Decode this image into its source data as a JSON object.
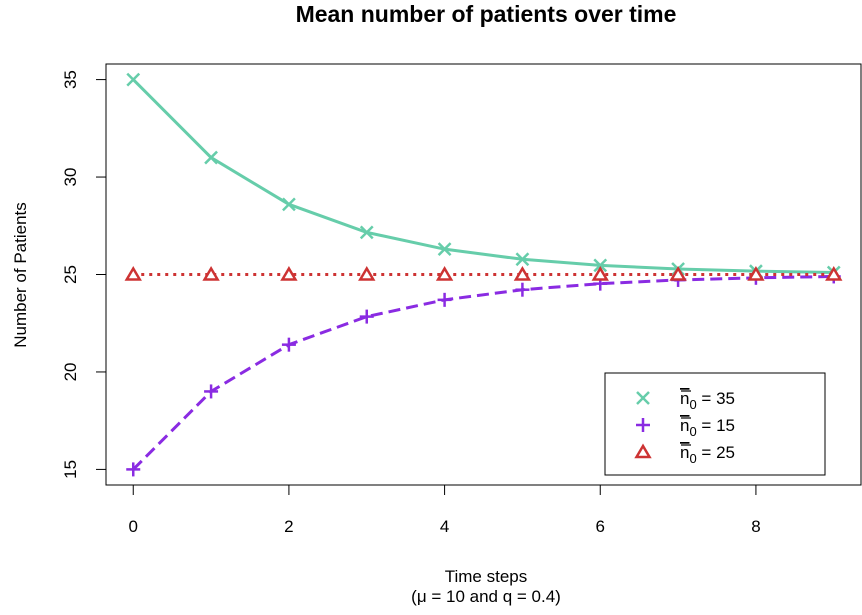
{
  "chart_data": {
    "type": "line",
    "title": "Mean number of patients over time",
    "xlabel": "Time steps",
    "xlabel_sub": "(μ = 10 and q = 0.4)",
    "ylabel": "Number of Patients",
    "xlim": [
      -0.35,
      9.35
    ],
    "ylim": [
      14.2,
      35.8
    ],
    "x_ticks": [
      0,
      2,
      4,
      6,
      8
    ],
    "y_ticks": [
      15,
      20,
      25,
      30,
      35
    ],
    "grid": false,
    "legend_position": "bottom-right",
    "x": [
      0,
      1,
      2,
      3,
      4,
      5,
      6,
      7,
      8,
      9
    ],
    "series": [
      {
        "name": "n̄₀ = 35",
        "legend_main": "n",
        "legend_sub": "0",
        "legend_rest": " = 35",
        "values": [
          35,
          31,
          28.6,
          27.16,
          26.3,
          25.78,
          25.47,
          25.28,
          25.17,
          25.1
        ],
        "color": "#66CDAA",
        "line_style": "solid",
        "marker": "x"
      },
      {
        "name": "n̄₀ = 15",
        "legend_main": "n",
        "legend_sub": "0",
        "legend_rest": " = 15",
        "values": [
          15,
          19,
          21.4,
          22.84,
          23.7,
          24.22,
          24.53,
          24.72,
          24.83,
          24.9
        ],
        "color": "#8A2BE2",
        "line_style": "dashed",
        "marker": "plus"
      },
      {
        "name": "n̄₀ = 25",
        "legend_main": "n",
        "legend_sub": "0",
        "legend_rest": " = 25",
        "values": [
          25,
          25,
          25,
          25,
          25,
          25,
          25,
          25,
          25,
          25
        ],
        "color": "#CD3333",
        "line_style": "dotted",
        "marker": "triangle"
      }
    ]
  }
}
